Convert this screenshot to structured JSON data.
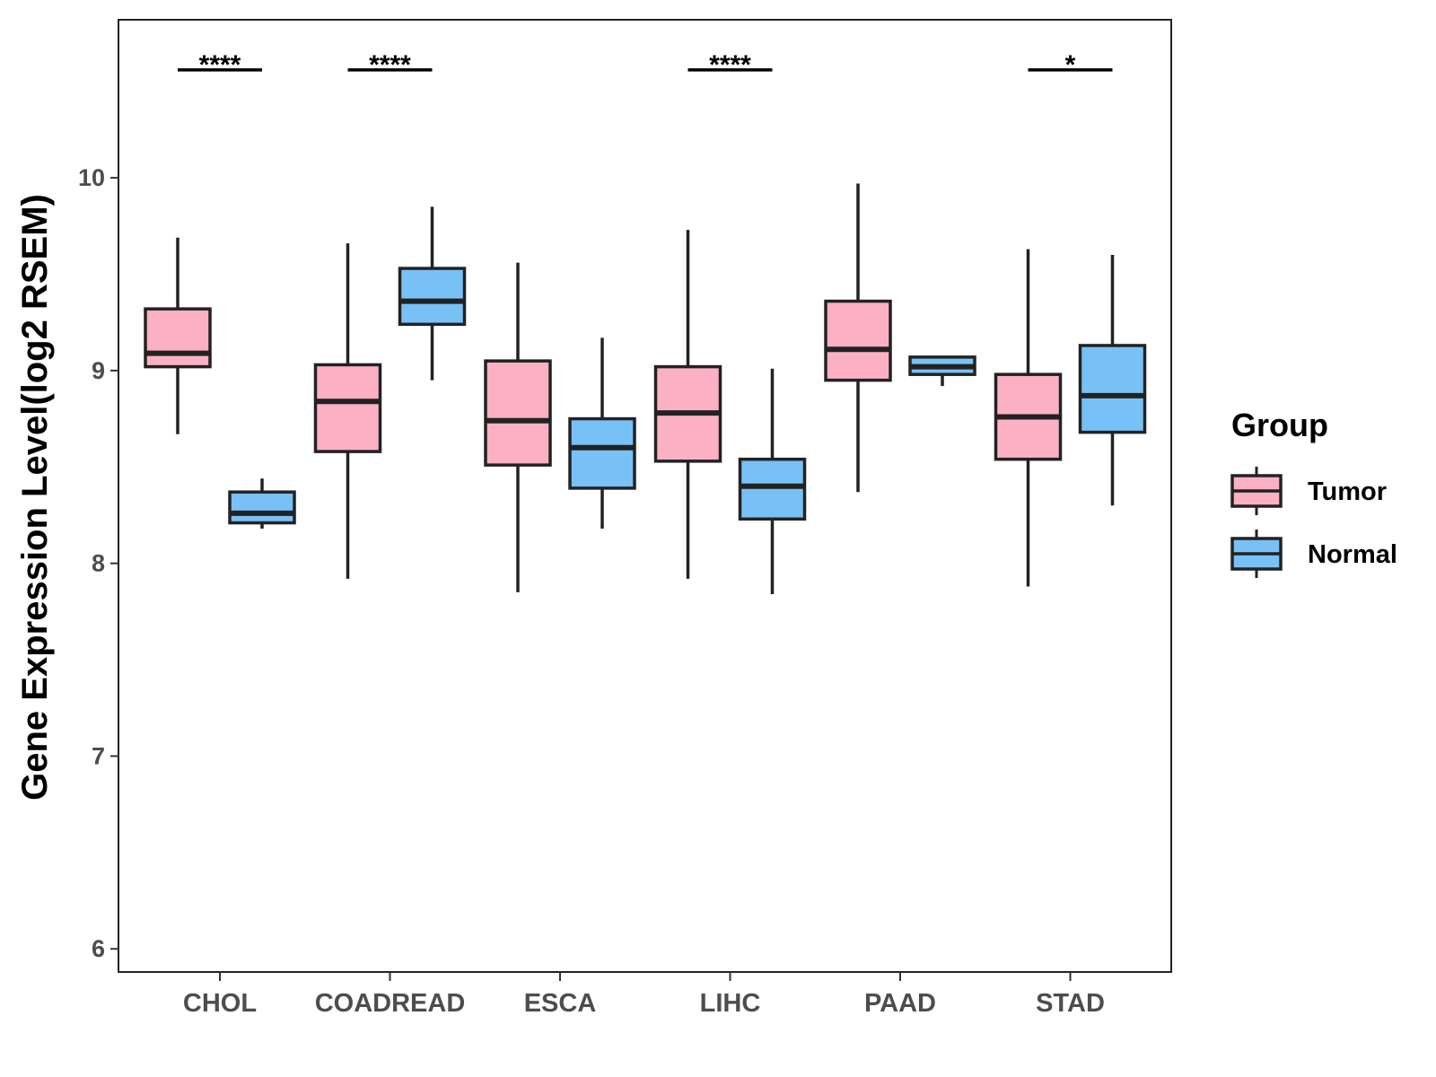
{
  "chart_data": {
    "type": "boxplot",
    "title": "",
    "xlabel": "",
    "ylabel": "Gene Expression Level(log2 RSEM)",
    "ylim": [
      5.88,
      10.82
    ],
    "yticks": [
      6,
      7,
      8,
      9,
      10
    ],
    "ytick_labels": [
      "6",
      "7",
      "8",
      "9",
      "10"
    ],
    "grid": false,
    "categories": [
      "CHOL",
      "COADREAD",
      "ESCA",
      "LIHC",
      "PAAD",
      "STAD"
    ],
    "legend": {
      "title": "Group",
      "position": "right",
      "entries": [
        "Tumor",
        "Normal"
      ]
    },
    "series": [
      {
        "name": "Tumor",
        "color": "#FBB1C3",
        "boxes": [
          {
            "category": "CHOL",
            "whisker_low": 8.67,
            "q1": 9.02,
            "median": 9.09,
            "q3": 9.32,
            "whisker_high": 9.69
          },
          {
            "category": "COADREAD",
            "whisker_low": 7.92,
            "q1": 8.58,
            "median": 8.84,
            "q3": 9.03,
            "whisker_high": 9.66
          },
          {
            "category": "ESCA",
            "whisker_low": 7.85,
            "q1": 8.51,
            "median": 8.74,
            "q3": 9.05,
            "whisker_high": 9.56
          },
          {
            "category": "LIHC",
            "whisker_low": 7.92,
            "q1": 8.53,
            "median": 8.78,
            "q3": 9.02,
            "whisker_high": 9.73
          },
          {
            "category": "PAAD",
            "whisker_low": 8.37,
            "q1": 8.95,
            "median": 9.11,
            "q3": 9.36,
            "whisker_high": 9.97
          },
          {
            "category": "STAD",
            "whisker_low": 7.88,
            "q1": 8.54,
            "median": 8.76,
            "q3": 8.98,
            "whisker_high": 9.63
          }
        ]
      },
      {
        "name": "Normal",
        "color": "#78C1F7",
        "boxes": [
          {
            "category": "CHOL",
            "whisker_low": 8.18,
            "q1": 8.21,
            "median": 8.26,
            "q3": 8.37,
            "whisker_high": 8.44
          },
          {
            "category": "COADREAD",
            "whisker_low": 8.95,
            "q1": 9.24,
            "median": 9.36,
            "q3": 9.53,
            "whisker_high": 9.85
          },
          {
            "category": "ESCA",
            "whisker_low": 8.18,
            "q1": 8.39,
            "median": 8.6,
            "q3": 8.75,
            "whisker_high": 9.17
          },
          {
            "category": "LIHC",
            "whisker_low": 7.84,
            "q1": 8.23,
            "median": 8.4,
            "q3": 8.54,
            "whisker_high": 9.01
          },
          {
            "category": "PAAD",
            "whisker_low": 8.92,
            "q1": 8.98,
            "median": 9.02,
            "q3": 9.07,
            "whisker_high": 9.07
          },
          {
            "category": "STAD",
            "whisker_low": 8.3,
            "q1": 8.68,
            "median": 8.87,
            "q3": 9.13,
            "whisker_high": 9.6
          }
        ]
      }
    ],
    "significance": [
      {
        "category": "CHOL",
        "label": "****",
        "y": 10.56
      },
      {
        "category": "COADREAD",
        "label": "****",
        "y": 10.56
      },
      {
        "category": "LIHC",
        "label": "****",
        "y": 10.56
      },
      {
        "category": "STAD",
        "label": "*",
        "y": 10.56
      }
    ]
  }
}
